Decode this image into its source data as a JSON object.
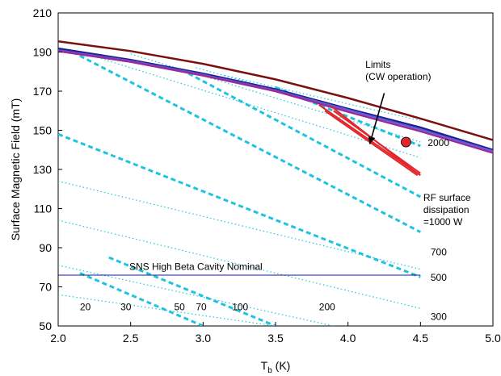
{
  "chart_data": {
    "type": "line",
    "xlabel_main": "T",
    "xlabel_sub": "b",
    "xlabel_unit": " (K)",
    "ylabel": "Surface Magnetic Field (mT)",
    "xlim": [
      2.0,
      5.0
    ],
    "ylim": [
      50,
      210
    ],
    "xticks": [
      "2.0",
      "2.5",
      "3.0",
      "3.5",
      "4.0",
      "4.5",
      "5.0"
    ],
    "yticks": [
      "50",
      "70",
      "90",
      "110",
      "130",
      "150",
      "170",
      "190",
      "210"
    ],
    "grid": false,
    "limit_curves": [
      {
        "color": "#7b1010",
        "width": 2.5,
        "x": [
          2.0,
          2.5,
          3.0,
          3.5,
          4.0,
          4.5,
          5.0
        ],
        "y": [
          195.5,
          190.5,
          184,
          176,
          166.5,
          156,
          145
        ]
      },
      {
        "color": "#1f1f8f",
        "width": 2.5,
        "x": [
          2.0,
          2.5,
          3.0,
          3.5,
          4.0,
          4.5,
          5.0
        ],
        "y": [
          191.8,
          186,
          179,
          171,
          161,
          151.5,
          140
        ]
      },
      {
        "color": "#5a5adc",
        "width": 2,
        "x": [
          2.0,
          2.5,
          3.0,
          3.5,
          4.0,
          4.5,
          5.0
        ],
        "y": [
          191,
          185.5,
          178.5,
          170.5,
          160.5,
          150.5,
          139.5
        ]
      },
      {
        "color": "#9a2a9a",
        "width": 2.5,
        "x": [
          2.0,
          2.5,
          3.0,
          3.5,
          4.0,
          4.5,
          5.0
        ],
        "y": [
          190.5,
          185,
          178,
          170,
          159.5,
          149.5,
          138.5
        ]
      }
    ],
    "dissipation_curves": [
      {
        "style": "dotted",
        "x": [
          2.0,
          3.5
        ],
        "y": [
          66,
          50
        ]
      },
      {
        "style": "dotted",
        "x": [
          2.0,
          3.9
        ],
        "y": [
          81,
          50
        ]
      },
      {
        "style": "dotted",
        "x": [
          2.0,
          4.5
        ],
        "y": [
          104,
          59
        ]
      },
      {
        "style": "dotted",
        "x": [
          2.0,
          4.5
        ],
        "y": [
          124,
          79
        ]
      },
      {
        "style": "dotted",
        "x": [
          2.15,
          4.5
        ],
        "y": [
          190,
          136
        ]
      },
      {
        "style": "dotted",
        "x": [
          2.5,
          4.5
        ],
        "y": [
          189,
          144
        ]
      },
      {
        "style": "dotted",
        "x": [
          2.95,
          4.5
        ],
        "y": [
          182,
          150
        ]
      },
      {
        "style": "dotted",
        "x": [
          3.15,
          4.5
        ],
        "y": [
          178,
          155
        ]
      },
      {
        "style": "dashed",
        "x": [
          2.15,
          3.0
        ],
        "y": [
          77,
          50
        ]
      },
      {
        "style": "dashed",
        "x": [
          2.35,
          3.5
        ],
        "y": [
          85,
          50
        ]
      },
      {
        "style": "dashed",
        "x": [
          2.0,
          4.5
        ],
        "y": [
          148,
          75
        ]
      },
      {
        "style": "dashed",
        "x": [
          2.1,
          4.5
        ],
        "y": [
          190,
          98
        ]
      },
      {
        "style": "dashed",
        "x": [
          2.85,
          4.5
        ],
        "y": [
          181,
          116
        ]
      },
      {
        "style": "dashed",
        "x": [
          3.5,
          4.5
        ],
        "y": [
          172,
          142
        ]
      }
    ],
    "red_limit_lines": [
      {
        "x": [
          3.8,
          4.5
        ],
        "y": [
          163,
          127
        ]
      },
      {
        "x": [
          3.84,
          4.48
        ],
        "y": [
          160,
          127
        ]
      },
      {
        "x": [
          3.9,
          4.5
        ],
        "y": [
          160,
          128
        ]
      },
      {
        "x": [
          3.88,
          4.46
        ],
        "y": [
          162.5,
          129
        ]
      }
    ],
    "point": {
      "x": 4.4,
      "y": 144,
      "color": "#e3262b"
    },
    "nominal": {
      "y": 76,
      "x": [
        2.0,
        4.5
      ],
      "label": "SNS High Beta Cavity Nominal",
      "label_x": 2.95,
      "label_y": 77
    },
    "power_labels": [
      {
        "text": "20",
        "x": 2.15,
        "y": 58
      },
      {
        "text": "30",
        "x": 2.43,
        "y": 58
      },
      {
        "text": "50",
        "x": 2.8,
        "y": 58
      },
      {
        "text": "70",
        "x": 2.95,
        "y": 58
      },
      {
        "text": "100",
        "x": 3.2,
        "y": 58
      },
      {
        "text": "200",
        "x": 3.8,
        "y": 58
      },
      {
        "text": "300",
        "x": 4.57,
        "y": 53
      },
      {
        "text": "500",
        "x": 4.57,
        "y": 73
      },
      {
        "text": "700",
        "x": 4.57,
        "y": 86
      },
      {
        "text": "2000",
        "x": 4.55,
        "y": 142
      }
    ],
    "annotation_rf": {
      "lines": [
        "RF surface",
        "dissipation",
        "=1000 W"
      ],
      "x": 4.52,
      "y": 114
    },
    "annotation_limits": {
      "lines": [
        "Limits",
        "(CW operation)"
      ],
      "x": 4.12,
      "y": 182
    },
    "arrow": {
      "from": [
        4.25,
        169
      ],
      "to": [
        4.15,
        143
      ]
    }
  }
}
